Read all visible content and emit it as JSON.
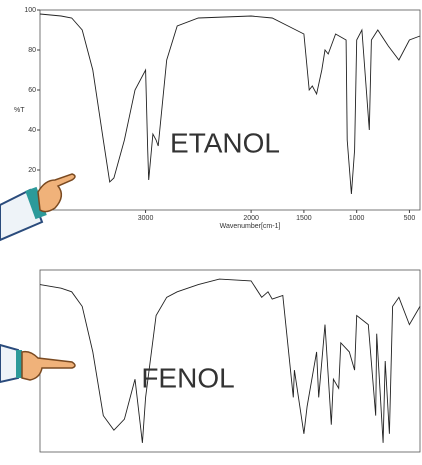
{
  "chart_data": [
    {
      "type": "line",
      "label": "ETANOL",
      "y_label": "%T",
      "x_label": "Wavenumber[cm-1]",
      "x": [
        4000,
        3800,
        3700,
        3600,
        3500,
        3400,
        3340,
        3300,
        3200,
        3100,
        3000,
        2980,
        2970,
        2930,
        2900,
        2880,
        2800,
        2700,
        2500,
        2000,
        1800,
        1650,
        1500,
        1450,
        1420,
        1380,
        1330,
        1300,
        1270,
        1200,
        1100,
        1090,
        1050,
        1020,
        1000,
        950,
        880,
        860,
        800,
        700,
        600,
        500,
        400
      ],
      "series": [
        {
          "color": "#222222",
          "values": [
            98,
            97,
            96,
            90,
            70,
            35,
            14,
            16,
            35,
            60,
            70,
            30,
            15,
            38,
            35,
            32,
            75,
            92,
            96,
            97,
            96,
            92,
            88,
            60,
            62,
            58,
            70,
            80,
            78,
            88,
            85,
            35,
            8,
            30,
            85,
            90,
            40,
            85,
            90,
            82,
            75,
            85,
            87
          ]
        }
      ],
      "xlim": [
        4000,
        400
      ],
      "ylim": [
        0,
        100
      ],
      "xticks": [
        3000,
        2000,
        1500,
        1000,
        500
      ],
      "yticks": [
        20,
        40,
        60,
        80,
        100
      ]
    },
    {
      "type": "line",
      "label": "FENOL",
      "x": [
        4000,
        3800,
        3700,
        3600,
        3500,
        3400,
        3300,
        3200,
        3100,
        3050,
        3030,
        3000,
        2900,
        2800,
        2700,
        2500,
        2300,
        2000,
        1900,
        1840,
        1800,
        1700,
        1600,
        1590,
        1500,
        1470,
        1380,
        1360,
        1300,
        1240,
        1220,
        1170,
        1150,
        1070,
        1020,
        1000,
        890,
        820,
        810,
        750,
        730,
        690,
        660,
        600,
        500,
        400
      ],
      "series": [
        {
          "color": "#222222",
          "values": [
            92,
            90,
            88,
            80,
            55,
            20,
            12,
            18,
            40,
            15,
            5,
            30,
            75,
            85,
            88,
            92,
            95,
            94,
            85,
            88,
            84,
            86,
            30,
            45,
            10,
            25,
            55,
            30,
            70,
            15,
            40,
            35,
            60,
            55,
            45,
            75,
            70,
            20,
            65,
            5,
            50,
            10,
            80,
            85,
            70,
            80
          ]
        }
      ],
      "xlim": [
        4000,
        400
      ],
      "ylim": [
        0,
        100
      ]
    }
  ]
}
